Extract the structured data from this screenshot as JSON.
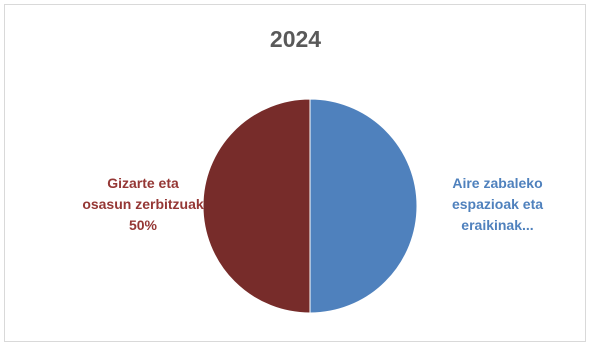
{
  "chart_data": {
    "type": "pie",
    "title": "2024",
    "slices": [
      {
        "label_lines": [
          "Aire zabaleko",
          "espazioak eta",
          "eraikinak..."
        ],
        "value": 50,
        "color": "#4f81bd",
        "label_color": "#4f81bd"
      },
      {
        "label_lines": [
          "Gizarte eta",
          "osasun zerbitzuak",
          "50%"
        ],
        "value": 50,
        "color": "#772c2a",
        "label_color": "#953735"
      }
    ]
  }
}
